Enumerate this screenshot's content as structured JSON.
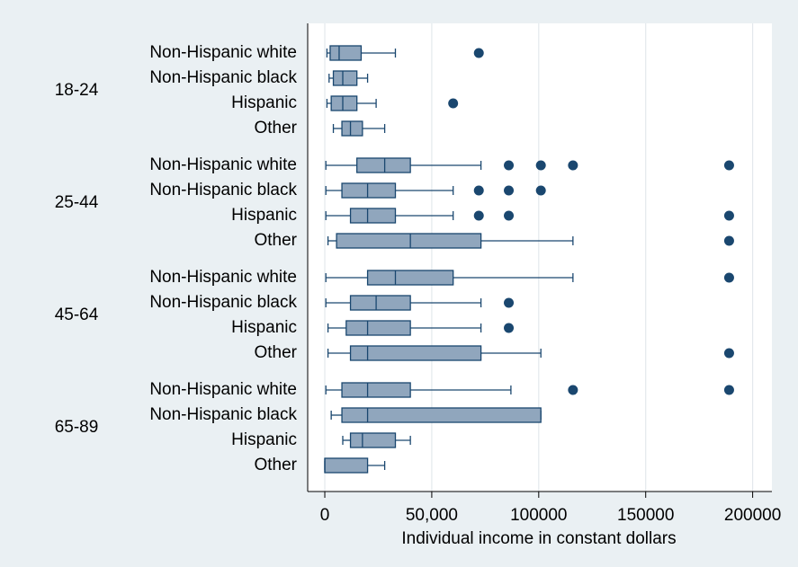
{
  "chart_data": {
    "type": "boxplot",
    "orientation": "horizontal",
    "x_label": "Individual income in constant dollars",
    "xlim": [
      -8000,
      209000
    ],
    "xticks": [
      0,
      {
        "value": 50000,
        "label": "50,000"
      },
      100000,
      150000,
      200000
    ],
    "grid": true,
    "box_color": "#90a6bd",
    "line_color": "#1a476f",
    "groups": [
      {
        "name": "18-24",
        "series": [
          {
            "name": "Non-Hispanic white",
            "min": 1000,
            "q1": 2500,
            "median": 6700,
            "q3": 17000,
            "max": 33000,
            "outliers": [
              72000
            ]
          },
          {
            "name": "Non-Hispanic black",
            "min": 2000,
            "q1": 4000,
            "median": 8400,
            "q3": 15000,
            "max": 20000,
            "outliers": []
          },
          {
            "name": "Hispanic",
            "min": 1000,
            "q1": 3000,
            "median": 8400,
            "q3": 15000,
            "max": 24000,
            "outliers": [
              60000
            ]
          },
          {
            "name": "Other",
            "min": 4000,
            "q1": 8000,
            "median": 12000,
            "q3": 17600,
            "max": 28000,
            "outliers": []
          }
        ]
      },
      {
        "name": "25-44",
        "series": [
          {
            "name": "Non-Hispanic white",
            "min": 500,
            "q1": 15000,
            "median": 28000,
            "q3": 40000,
            "max": 73000,
            "outliers": [
              86000,
              101000,
              116000,
              189000
            ]
          },
          {
            "name": "Non-Hispanic black",
            "min": 500,
            "q1": 8000,
            "median": 20000,
            "q3": 33000,
            "max": 60000,
            "outliers": [
              72000,
              86000,
              101000
            ]
          },
          {
            "name": "Hispanic",
            "min": 500,
            "q1": 12000,
            "median": 20000,
            "q3": 33000,
            "max": 60000,
            "outliers": [
              72000,
              86000,
              189000
            ]
          },
          {
            "name": "Other",
            "min": 1500,
            "q1": 5500,
            "median": 40000,
            "q3": 73000,
            "max": 116000,
            "outliers": [
              189000
            ]
          }
        ]
      },
      {
        "name": "45-64",
        "series": [
          {
            "name": "Non-Hispanic white",
            "min": 500,
            "q1": 20000,
            "median": 33000,
            "q3": 60000,
            "max": 116000,
            "outliers": [
              189000
            ]
          },
          {
            "name": "Non-Hispanic black",
            "min": 500,
            "q1": 12000,
            "median": 24000,
            "q3": 40000,
            "max": 73000,
            "outliers": [
              86000
            ]
          },
          {
            "name": "Hispanic",
            "min": 1500,
            "q1": 10000,
            "median": 20000,
            "q3": 40000,
            "max": 73000,
            "outliers": [
              86000
            ]
          },
          {
            "name": "Other",
            "min": 1500,
            "q1": 12000,
            "median": 20000,
            "q3": 73000,
            "max": 101000,
            "outliers": [
              189000
            ]
          }
        ]
      },
      {
        "name": "65-89",
        "series": [
          {
            "name": "Non-Hispanic white",
            "min": 500,
            "q1": 8000,
            "median": 20000,
            "q3": 40000,
            "max": 87000,
            "outliers": [
              116000,
              189000
            ]
          },
          {
            "name": "Non-Hispanic black",
            "min": 3000,
            "q1": 8000,
            "median": 20000,
            "q3": 101000,
            "max": 101000,
            "outliers": []
          },
          {
            "name": "Hispanic",
            "min": 8400,
            "q1": 12000,
            "median": 17600,
            "q3": 33000,
            "max": 40000,
            "outliers": []
          },
          {
            "name": "Other",
            "min": 0,
            "q1": 0,
            "median": 0,
            "q3": 20000,
            "max": 28000,
            "outliers": []
          }
        ]
      }
    ]
  }
}
